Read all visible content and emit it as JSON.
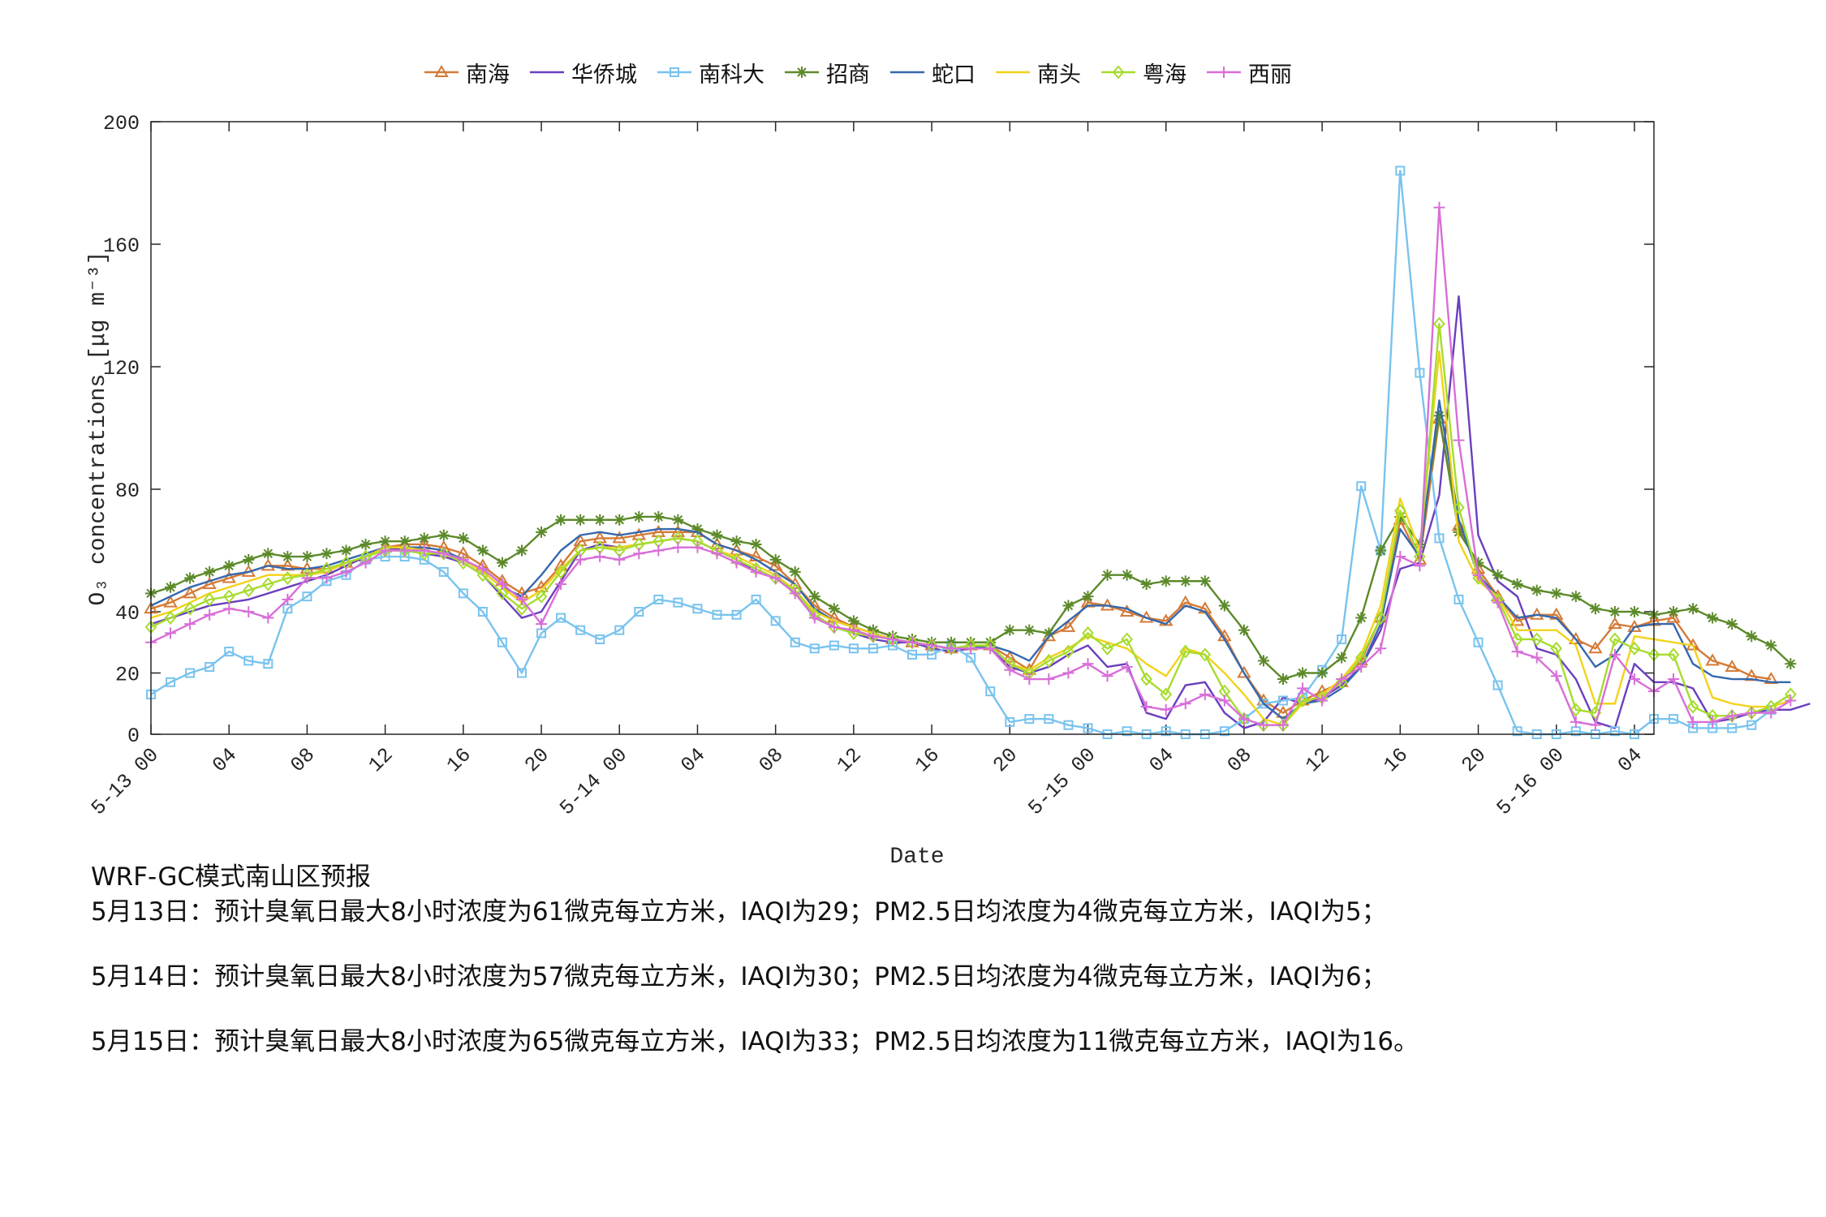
{
  "chart_data": {
    "type": "line",
    "xlabel": "Date",
    "ylabel": "O₃ concentrations [μg m⁻³]",
    "ylim": [
      0,
      200
    ],
    "yticks": [
      0,
      20,
      40,
      80,
      120,
      160,
      200
    ],
    "xlim": [
      0,
      77
    ],
    "x_unit": "hours since 5-13 00",
    "xticks": [
      {
        "x": 0,
        "label": "5-13 00"
      },
      {
        "x": 4,
        "label": "04"
      },
      {
        "x": 8,
        "label": "08"
      },
      {
        "x": 12,
        "label": "12"
      },
      {
        "x": 16,
        "label": "16"
      },
      {
        "x": 20,
        "label": "20"
      },
      {
        "x": 24,
        "label": "5-14 00"
      },
      {
        "x": 28,
        "label": "04"
      },
      {
        "x": 32,
        "label": "08"
      },
      {
        "x": 36,
        "label": "12"
      },
      {
        "x": 40,
        "label": "16"
      },
      {
        "x": 44,
        "label": "20"
      },
      {
        "x": 48,
        "label": "5-15 00"
      },
      {
        "x": 52,
        "label": "04"
      },
      {
        "x": 56,
        "label": "08"
      },
      {
        "x": 60,
        "label": "12"
      },
      {
        "x": 64,
        "label": "16"
      },
      {
        "x": 68,
        "label": "20"
      },
      {
        "x": 72,
        "label": "5-16 00"
      },
      {
        "x": 76,
        "label": "04"
      }
    ],
    "legend_position": "top",
    "series": [
      {
        "name": "南海",
        "color": "#D47A36",
        "marker": "triangle",
        "values": [
          41,
          43,
          46,
          49,
          51,
          53,
          55,
          55,
          54,
          54,
          56,
          58,
          61,
          62,
          62,
          61,
          59,
          55,
          50,
          46,
          48,
          55,
          63,
          64,
          64,
          65,
          66,
          66,
          66,
          62,
          60,
          58,
          55,
          49,
          42,
          38,
          35,
          33,
          31,
          30,
          29,
          28,
          29,
          29,
          25,
          21,
          32,
          35,
          43,
          42,
          40,
          38,
          37,
          43,
          41,
          32,
          20,
          11,
          7,
          11,
          14,
          17,
          24,
          38,
          70,
          57,
          103,
          68,
          54,
          45,
          37,
          39,
          39,
          31,
          28,
          36,
          35,
          37,
          38,
          29,
          24,
          22,
          19,
          18
        ]
      },
      {
        "name": "华侨城",
        "color": "#6A3FBF",
        "marker": "none",
        "values": [
          36,
          38,
          40,
          42,
          43,
          44,
          46,
          48,
          50,
          52,
          55,
          58,
          61,
          60,
          59,
          58,
          56,
          52,
          45,
          38,
          40,
          50,
          60,
          62,
          61,
          62,
          63,
          64,
          63,
          60,
          57,
          53,
          51,
          47,
          39,
          35,
          33,
          31,
          30,
          30,
          28,
          27,
          28,
          28,
          22,
          20,
          22,
          26,
          29,
          22,
          23,
          7,
          5,
          16,
          17,
          7,
          2,
          4,
          12,
          10,
          12,
          16,
          22,
          34,
          54,
          56,
          78,
          143,
          65,
          50,
          45,
          28,
          26,
          18,
          4,
          2,
          23,
          17,
          17,
          15,
          4,
          5,
          7,
          8,
          8,
          10
        ]
      },
      {
        "name": "南科大",
        "color": "#79C3EE",
        "marker": "square",
        "values": [
          13,
          17,
          20,
          22,
          27,
          24,
          23,
          41,
          45,
          50,
          52,
          57,
          58,
          58,
          57,
          53,
          46,
          40,
          30,
          20,
          33,
          38,
          34,
          31,
          34,
          40,
          44,
          43,
          41,
          39,
          39,
          44,
          37,
          30,
          28,
          29,
          28,
          28,
          29,
          26,
          26,
          29,
          25,
          14,
          4,
          5,
          5,
          3,
          2,
          0,
          1,
          0,
          1,
          0,
          0,
          1,
          5,
          10,
          11,
          12,
          21,
          31,
          81,
          60,
          184,
          118,
          64,
          44,
          30,
          16,
          1,
          0,
          0,
          1,
          0,
          1,
          0,
          5,
          5,
          2,
          2,
          2,
          3,
          8
        ]
      },
      {
        "name": "招商",
        "color": "#5C8A2A",
        "marker": "star",
        "values": [
          46,
          48,
          51,
          53,
          55,
          57,
          59,
          58,
          58,
          59,
          60,
          62,
          63,
          63,
          64,
          65,
          64,
          60,
          56,
          60,
          66,
          70,
          70,
          70,
          70,
          71,
          71,
          70,
          67,
          65,
          63,
          62,
          57,
          53,
          45,
          41,
          37,
          34,
          32,
          31,
          30,
          30,
          30,
          30,
          34,
          34,
          33,
          42,
          45,
          52,
          52,
          49,
          50,
          50,
          50,
          42,
          34,
          24,
          18,
          20,
          20,
          25,
          38,
          60,
          71,
          62,
          104,
          66,
          56,
          52,
          49,
          47,
          46,
          45,
          41,
          40,
          40,
          39,
          40,
          41,
          38,
          36,
          32,
          29,
          23
        ]
      },
      {
        "name": "蛇口",
        "color": "#3568AE",
        "marker": "none",
        "values": [
          42,
          45,
          48,
          50,
          52,
          53,
          55,
          54,
          54,
          55,
          57,
          59,
          61,
          61,
          61,
          60,
          57,
          53,
          48,
          45,
          52,
          60,
          65,
          66,
          65,
          66,
          67,
          67,
          66,
          62,
          60,
          57,
          53,
          49,
          41,
          37,
          35,
          33,
          31,
          30,
          29,
          28,
          28,
          29,
          27,
          24,
          32,
          37,
          42,
          42,
          41,
          38,
          36,
          42,
          40,
          31,
          20,
          10,
          5,
          10,
          11,
          15,
          22,
          36,
          67,
          58,
          109,
          70,
          52,
          45,
          38,
          39,
          38,
          31,
          22,
          26,
          35,
          36,
          36,
          23,
          19,
          18,
          18,
          17,
          17
        ]
      },
      {
        "name": "南头",
        "color": "#F2D21A",
        "marker": "none",
        "values": [
          38,
          40,
          43,
          46,
          48,
          50,
          52,
          52,
          52,
          53,
          56,
          58,
          61,
          61,
          60,
          59,
          57,
          53,
          48,
          43,
          47,
          54,
          60,
          61,
          61,
          62,
          63,
          64,
          63,
          60,
          58,
          55,
          52,
          47,
          40,
          37,
          35,
          33,
          31,
          30,
          29,
          28,
          29,
          29,
          23,
          21,
          25,
          28,
          32,
          30,
          28,
          23,
          19,
          28,
          26,
          20,
          13,
          5,
          3,
          10,
          13,
          18,
          26,
          42,
          77,
          60,
          125,
          63,
          50,
          45,
          34,
          34,
          34,
          29,
          10,
          10,
          32,
          31,
          30,
          29,
          12,
          10,
          9,
          9,
          11
        ]
      },
      {
        "name": "粤海",
        "color": "#A6DC2E",
        "marker": "diamond",
        "values": [
          35,
          38,
          41,
          44,
          45,
          47,
          49,
          51,
          52,
          54,
          56,
          58,
          60,
          60,
          59,
          59,
          56,
          52,
          46,
          41,
          45,
          53,
          60,
          61,
          60,
          62,
          63,
          64,
          63,
          60,
          57,
          54,
          51,
          47,
          39,
          35,
          33,
          32,
          31,
          30,
          29,
          28,
          29,
          29,
          23,
          20,
          24,
          27,
          33,
          28,
          31,
          18,
          13,
          27,
          26,
          14,
          5,
          3,
          3,
          11,
          12,
          17,
          25,
          38,
          73,
          58,
          134,
          74,
          51,
          44,
          31,
          31,
          28,
          8,
          7,
          31,
          28,
          26,
          26,
          9,
          6,
          6,
          7,
          9,
          13
        ]
      },
      {
        "name": "西丽",
        "color": "#D86ED8",
        "marker": "plus",
        "values": [
          30,
          33,
          36,
          39,
          41,
          40,
          38,
          44,
          51,
          51,
          53,
          56,
          60,
          60,
          60,
          59,
          57,
          54,
          49,
          44,
          36,
          49,
          57,
          58,
          57,
          59,
          60,
          61,
          61,
          59,
          56,
          53,
          51,
          46,
          38,
          35,
          34,
          32,
          31,
          30,
          29,
          28,
          28,
          28,
          21,
          18,
          18,
          20,
          23,
          19,
          22,
          9,
          8,
          10,
          13,
          11,
          5,
          3,
          3,
          15,
          11,
          18,
          22,
          28,
          58,
          55,
          172,
          96,
          52,
          43,
          27,
          25,
          19,
          4,
          3,
          26,
          18,
          14,
          18,
          4,
          4,
          6,
          7,
          7,
          11
        ]
      }
    ]
  },
  "notes": {
    "title": "WRF-GC模式南山区预报",
    "lines": [
      "5月13日：预计臭氧日最大8小时浓度为61微克每立方米，IAQI为29；PM2.5日均浓度为4微克每立方米，IAQI为5；",
      "5月14日：预计臭氧日最大8小时浓度为57微克每立方米，IAQI为30；PM2.5日均浓度为4微克每立方米，IAQI为6；",
      "5月15日：预计臭氧日最大8小时浓度为65微克每立方米，IAQI为33；PM2.5日均浓度为11微克每立方米，IAQI为16。"
    ]
  }
}
